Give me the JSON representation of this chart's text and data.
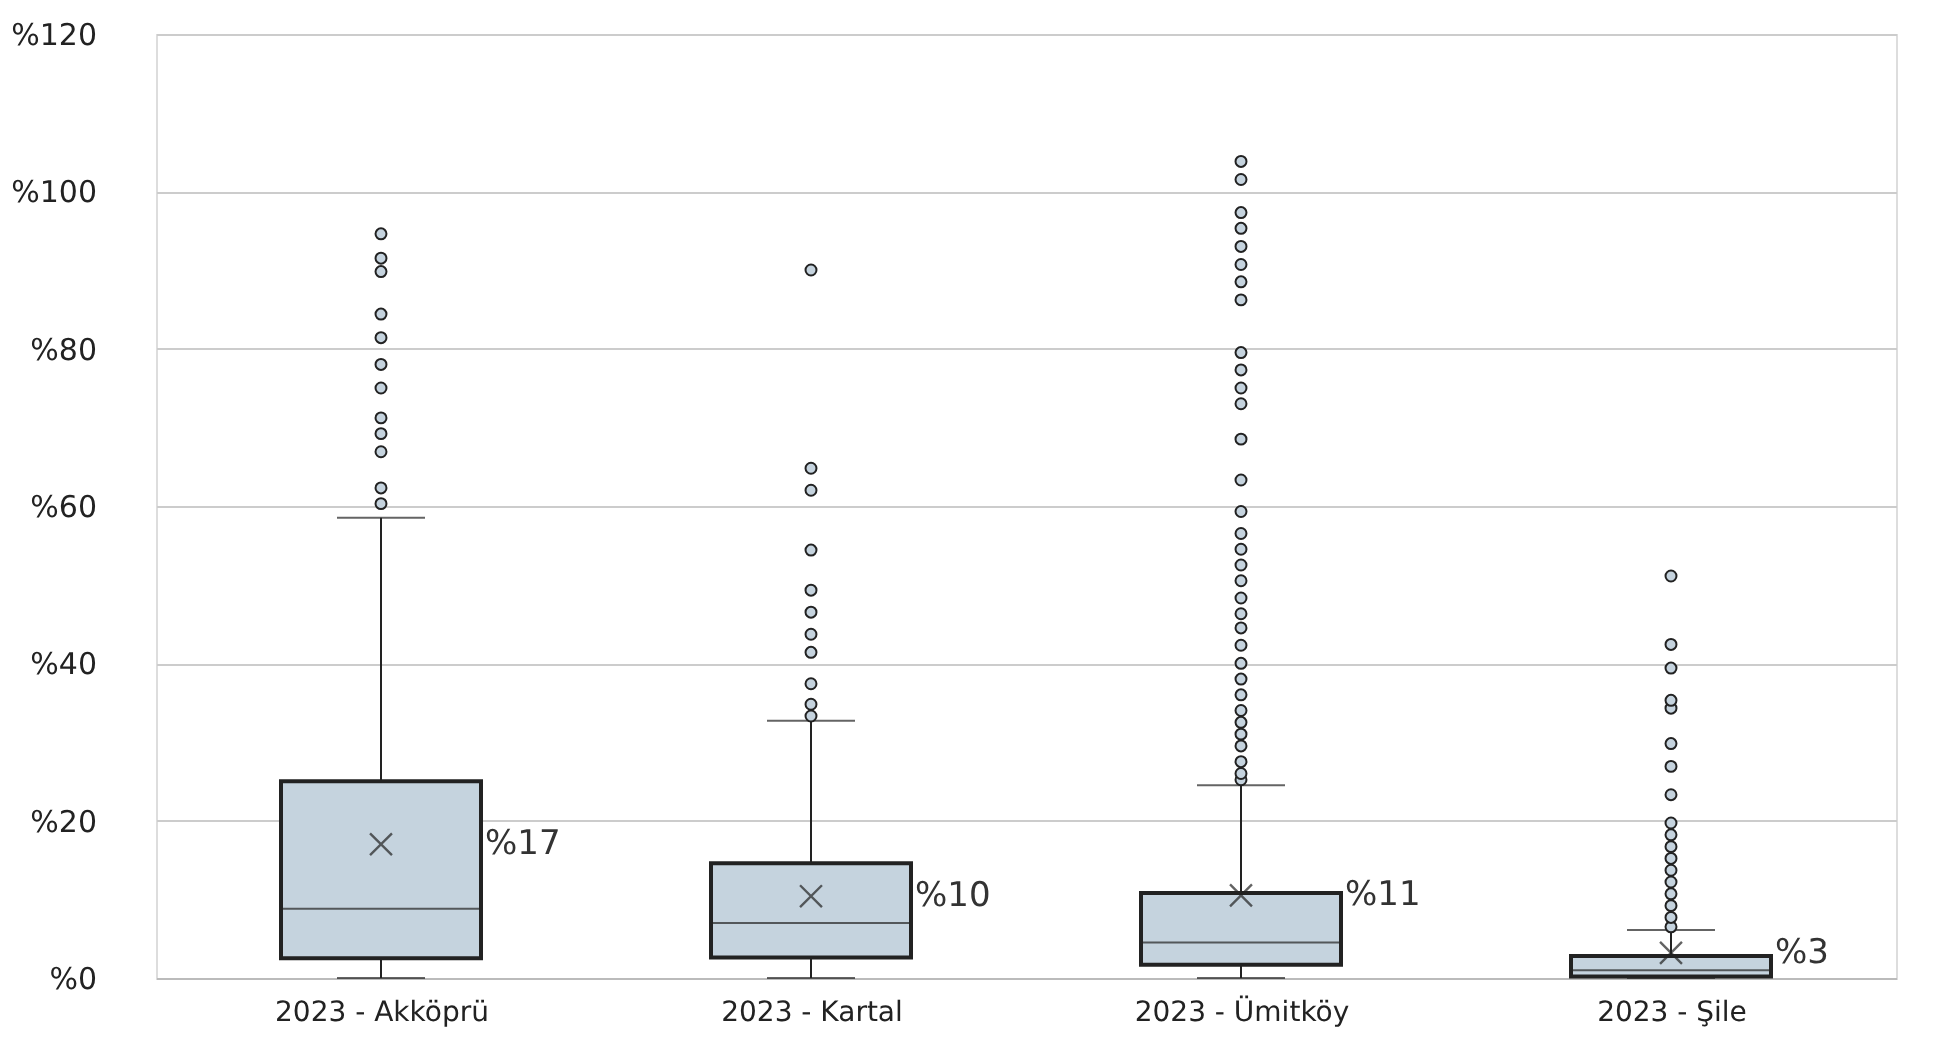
{
  "chart_data": {
    "type": "box",
    "categories": [
      "2023 - Akköprü",
      "2023 - Kartal",
      "2023 - Ümitköy",
      "2023 - Şile"
    ],
    "color": "#c5d3de",
    "boxes": [
      {
        "low": 0,
        "q1": 2.5,
        "median": 8.8,
        "q3": 25,
        "high": 58.5,
        "mean": 17,
        "outliers": [
          60.3,
          62.3,
          66.9,
          69.2,
          71.2,
          75,
          78,
          81.4,
          84.4,
          89.8,
          91.5,
          94.6
        ]
      },
      {
        "low": 0,
        "q1": 2.6,
        "median": 7,
        "q3": 14.6,
        "high": 32.7,
        "mean": 10.4,
        "outliers": [
          33.3,
          34.8,
          37.4,
          41.4,
          43.7,
          46.5,
          49.3,
          54.4,
          62,
          64.8,
          90
        ]
      },
      {
        "low": 0,
        "q1": 1.7,
        "median": 4.5,
        "q3": 10.8,
        "high": 24.5,
        "mean": 10.5,
        "outliers": [
          25.2,
          26,
          27.5,
          29.5,
          31,
          32.5,
          34,
          36,
          38,
          40,
          42.3,
          44.5,
          46.3,
          48.3,
          50.5,
          52.5,
          54.5,
          56.5,
          59.3,
          63.3,
          68.5,
          73,
          75,
          77.3,
          79.5,
          86.2,
          88.5,
          90.7,
          93,
          95.3,
          97.3,
          101.5,
          103.8
        ]
      },
      {
        "low": 0,
        "q1": 0.2,
        "median": 1,
        "q3": 2.8,
        "high": 6.1,
        "mean": 3.2,
        "outliers": [
          6.5,
          7.7,
          9.2,
          10.7,
          12.2,
          13.7,
          15.2,
          16.7,
          18.2,
          19.7,
          23.3,
          26.9,
          29.8,
          34.3,
          35.3,
          39.4,
          42.4,
          51.1
        ]
      }
    ],
    "ylim": [
      0,
      120
    ],
    "yticks": [
      {
        "value": 0,
        "label": "%0"
      },
      {
        "value": 20,
        "label": "%20"
      },
      {
        "value": 40,
        "label": "%40"
      },
      {
        "value": 60,
        "label": "%60"
      },
      {
        "value": 80,
        "label": "%80"
      },
      {
        "value": 100,
        "label": "%100"
      },
      {
        "value": 120,
        "label": "%120"
      }
    ],
    "grid": "y",
    "annotations": [
      "%17",
      "%10",
      "%11",
      "%3"
    ]
  }
}
